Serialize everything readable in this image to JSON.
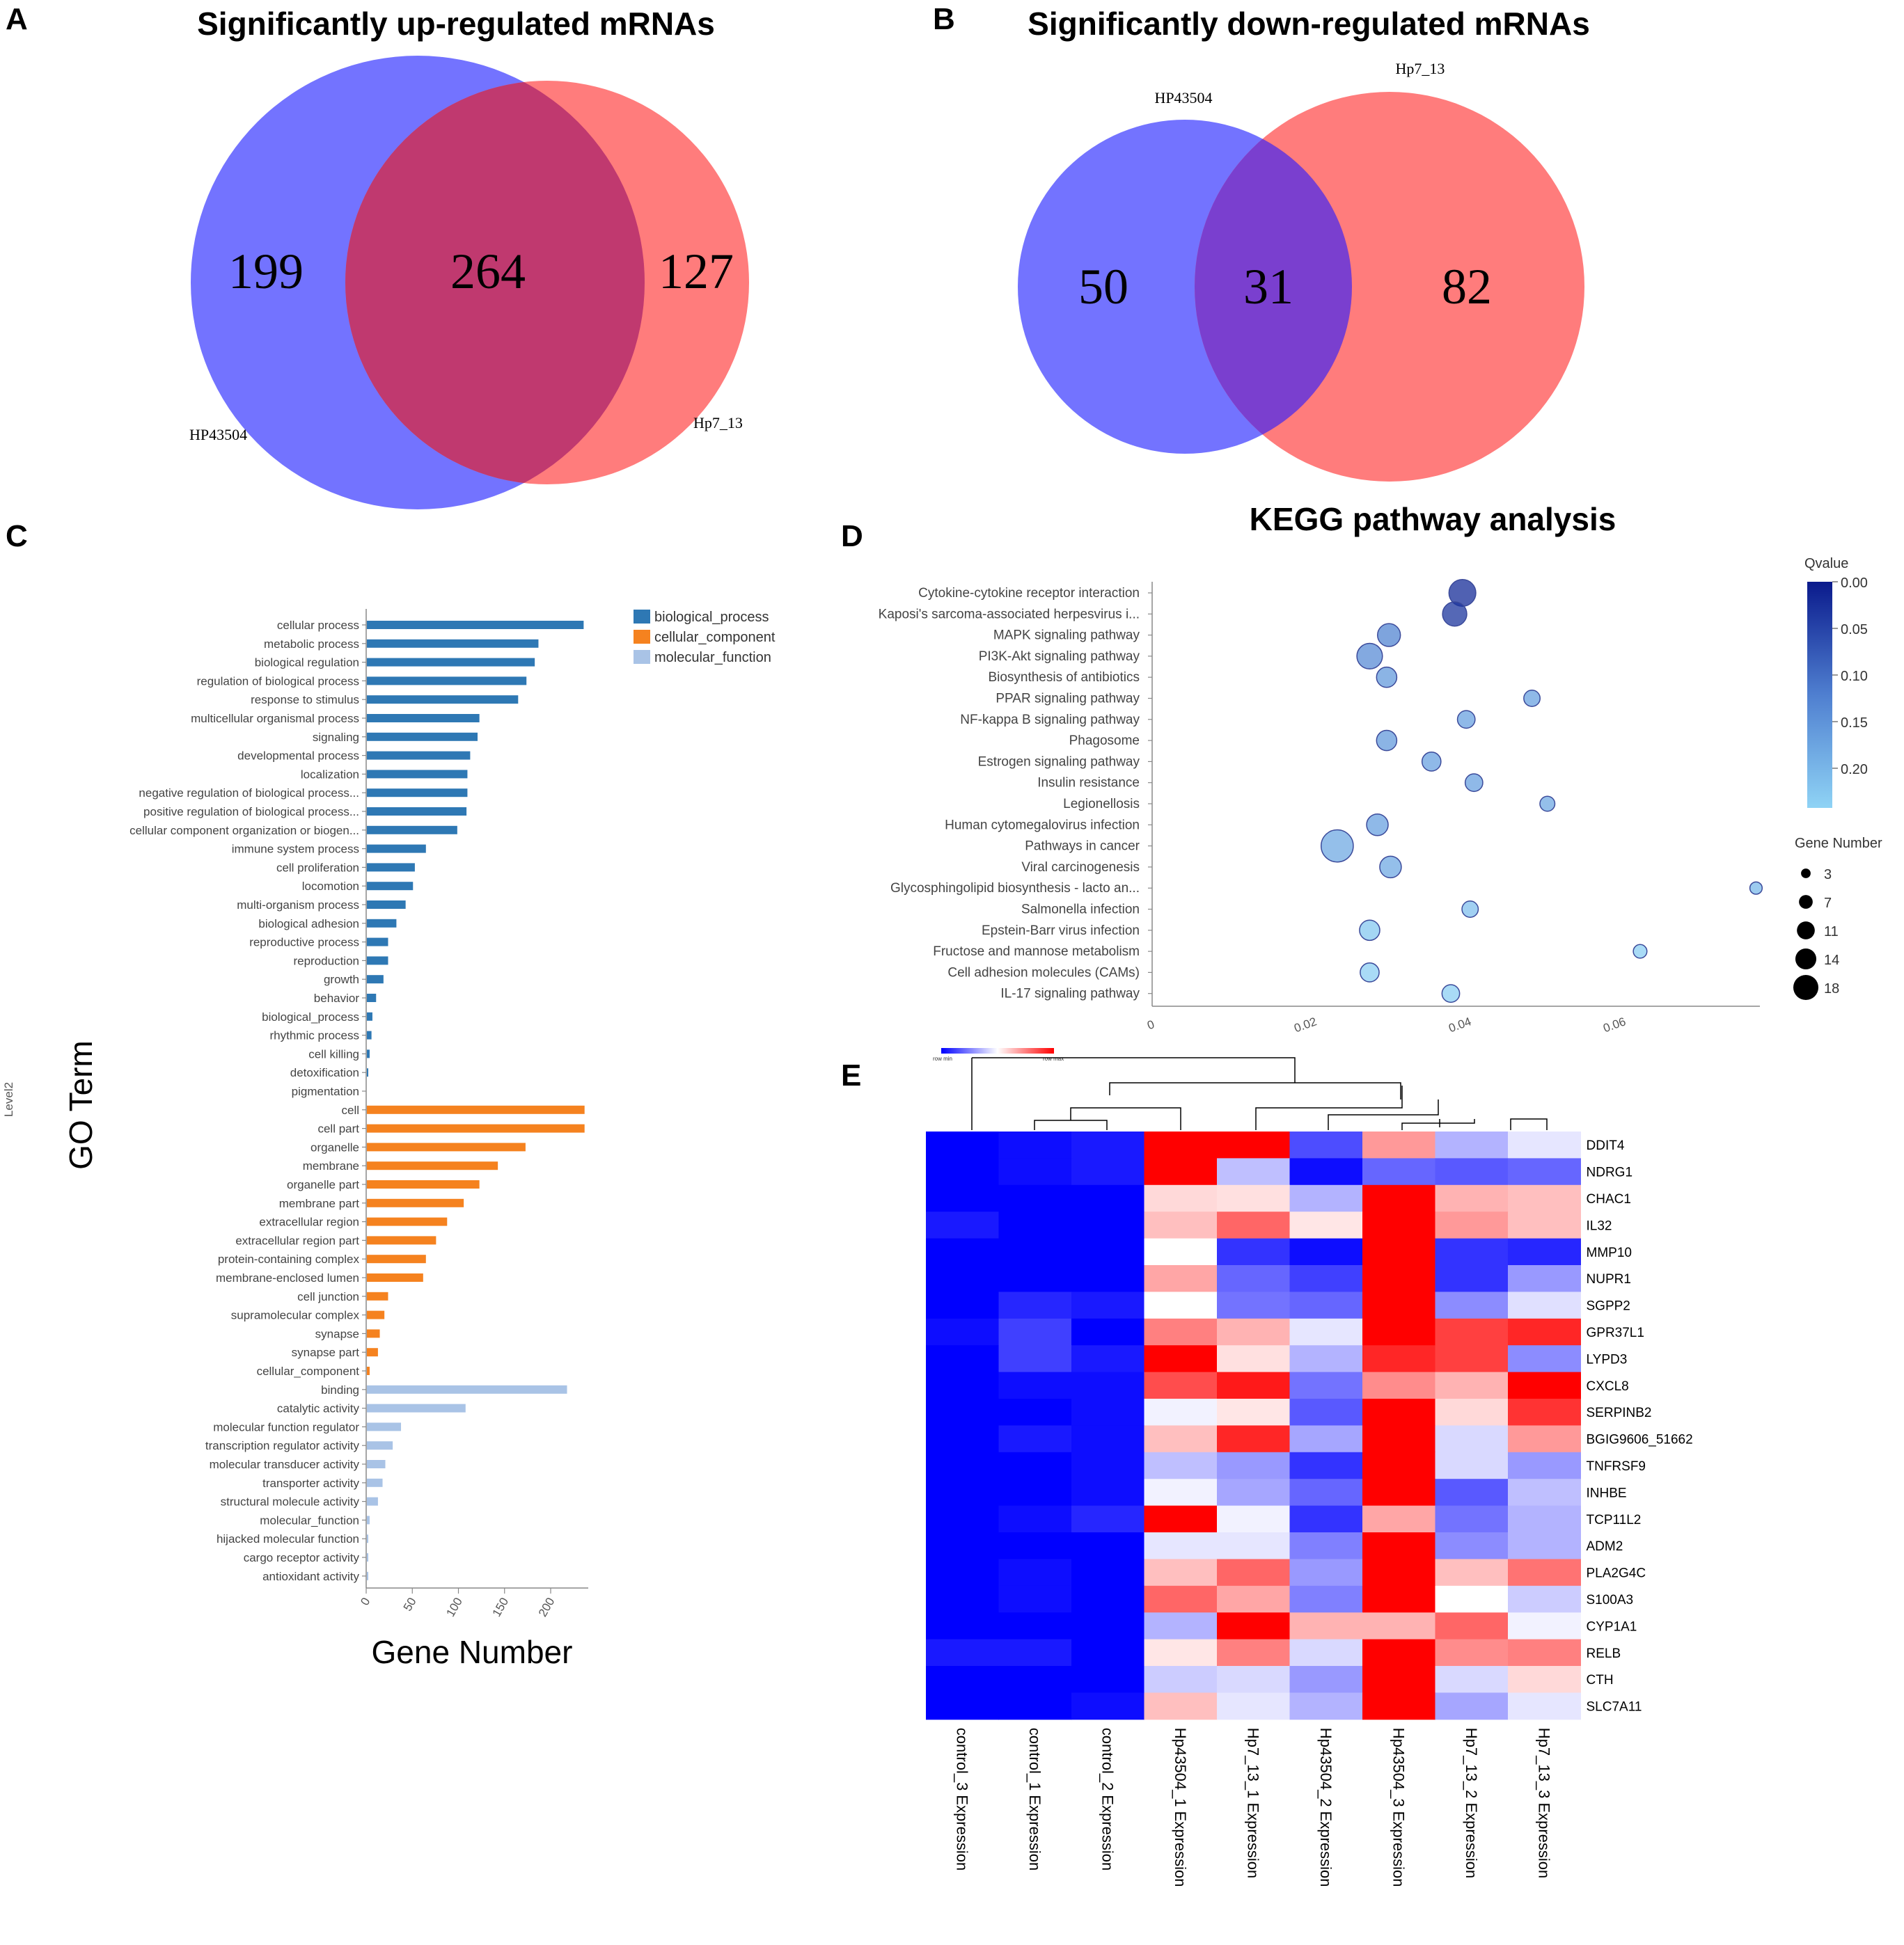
{
  "chart_data": [
    {
      "panel": "A",
      "type": "venn",
      "title": "Significantly up-regulated mRNAs",
      "sets": [
        "HP43504",
        "Hp7_13"
      ],
      "values": {
        "left_only": 199,
        "overlap": 264,
        "right_only": 127
      },
      "colors": {
        "left": "#6b6bff",
        "right": "#ff6e6e",
        "overlap": "#c0396f"
      }
    },
    {
      "panel": "B",
      "type": "venn",
      "title": "Significantly down-regulated mRNAs",
      "sets": [
        "HP43504",
        "Hp7_13"
      ],
      "values": {
        "left_only": 50,
        "overlap": 31,
        "right_only": 82
      },
      "colors": {
        "left": "#6b6bff",
        "right": "#ff6e6e",
        "overlap": "#7a3fcf"
      }
    },
    {
      "panel": "C",
      "type": "bar",
      "orientation": "horizontal",
      "ylabel": "GO Term",
      "xlabel": "Gene Number",
      "side_label": "Level2",
      "xlim": [
        0,
        235
      ],
      "xticks": [
        0,
        50,
        100,
        150,
        200
      ],
      "legend": [
        {
          "name": "biological_process",
          "color": "#2e78b4"
        },
        {
          "name": "cellular_component",
          "color": "#f5821f"
        },
        {
          "name": "molecular_function",
          "color": "#a9c3e6"
        }
      ],
      "categories": [
        {
          "term": "cellular process",
          "value": 235,
          "group": 0
        },
        {
          "term": "metabolic process",
          "value": 186,
          "group": 0
        },
        {
          "term": "biological regulation",
          "value": 182,
          "group": 0
        },
        {
          "term": "regulation of biological process",
          "value": 173,
          "group": 0
        },
        {
          "term": "response to stimulus",
          "value": 164,
          "group": 0
        },
        {
          "term": "multicellular organismal process",
          "value": 122,
          "group": 0
        },
        {
          "term": "signaling",
          "value": 120,
          "group": 0
        },
        {
          "term": "developmental process",
          "value": 112,
          "group": 0
        },
        {
          "term": "localization",
          "value": 109,
          "group": 0
        },
        {
          "term": "negative regulation of biological process...",
          "value": 109,
          "group": 0
        },
        {
          "term": "positive regulation of biological process...",
          "value": 108,
          "group": 0
        },
        {
          "term": "cellular component organization or biogen...",
          "value": 98,
          "group": 0
        },
        {
          "term": "immune system process",
          "value": 64,
          "group": 0
        },
        {
          "term": "cell proliferation",
          "value": 52,
          "group": 0
        },
        {
          "term": "locomotion",
          "value": 50,
          "group": 0
        },
        {
          "term": "multi-organism process",
          "value": 42,
          "group": 0
        },
        {
          "term": "biological adhesion",
          "value": 32,
          "group": 0
        },
        {
          "term": "reproductive process",
          "value": 23,
          "group": 0
        },
        {
          "term": "reproduction",
          "value": 23,
          "group": 0
        },
        {
          "term": "growth",
          "value": 18,
          "group": 0
        },
        {
          "term": "behavior",
          "value": 10,
          "group": 0
        },
        {
          "term": "biological_process",
          "value": 6,
          "group": 0
        },
        {
          "term": "rhythmic process",
          "value": 5,
          "group": 0
        },
        {
          "term": "cell killing",
          "value": 3,
          "group": 0
        },
        {
          "term": "detoxification",
          "value": 1,
          "group": 0
        },
        {
          "term": "pigmentation",
          "value": 0,
          "group": 0
        },
        {
          "term": "cell",
          "value": 236,
          "group": 1
        },
        {
          "term": "cell part",
          "value": 236,
          "group": 1
        },
        {
          "term": "organelle",
          "value": 172,
          "group": 1
        },
        {
          "term": "membrane",
          "value": 142,
          "group": 1
        },
        {
          "term": "organelle part",
          "value": 122,
          "group": 1
        },
        {
          "term": "membrane part",
          "value": 105,
          "group": 1
        },
        {
          "term": "extracellular region",
          "value": 87,
          "group": 1
        },
        {
          "term": "extracellular region part",
          "value": 75,
          "group": 1
        },
        {
          "term": "protein-containing complex",
          "value": 64,
          "group": 1
        },
        {
          "term": "membrane-enclosed lumen",
          "value": 61,
          "group": 1
        },
        {
          "term": "cell junction",
          "value": 23,
          "group": 1
        },
        {
          "term": "supramolecular complex",
          "value": 19,
          "group": 1
        },
        {
          "term": "synapse",
          "value": 14,
          "group": 1
        },
        {
          "term": "synapse part",
          "value": 12,
          "group": 1
        },
        {
          "term": "cellular_component",
          "value": 3,
          "group": 1
        },
        {
          "term": "binding",
          "value": 217,
          "group": 2
        },
        {
          "term": "catalytic activity",
          "value": 107,
          "group": 2
        },
        {
          "term": "molecular function regulator",
          "value": 37,
          "group": 2
        },
        {
          "term": "transcription regulator activity",
          "value": 28,
          "group": 2
        },
        {
          "term": "molecular transducer activity",
          "value": 20,
          "group": 2
        },
        {
          "term": "transporter activity",
          "value": 17,
          "group": 2
        },
        {
          "term": "structural molecule activity",
          "value": 12,
          "group": 2
        },
        {
          "term": "molecular_function",
          "value": 3,
          "group": 2
        },
        {
          "term": "hijacked molecular function",
          "value": 1,
          "group": 2
        },
        {
          "term": "cargo receptor activity",
          "value": 1,
          "group": 2
        },
        {
          "term": "antioxidant activity",
          "value": 1,
          "group": 2
        }
      ]
    },
    {
      "panel": "D",
      "type": "scatter",
      "title": "KEGG pathway analysis",
      "xlim": [
        0,
        0.08
      ],
      "xticks": [
        0,
        0.02,
        0.04,
        0.06
      ],
      "xtick_labels": [
        "0",
        "0.02",
        "0.04",
        "0.06"
      ],
      "color_legend_title": "Qvalue",
      "color_ticks": [
        "0.00",
        "0.05",
        "0.10",
        "0.15",
        "0.20"
      ],
      "size_legend_title": "Gene Number",
      "size_legend": [
        3,
        7,
        11,
        14,
        18
      ],
      "points": [
        {
          "pathway": "Cytokine-cytokine receptor interaction",
          "x": 0.0415,
          "q": 0.02,
          "genes": 14
        },
        {
          "pathway": "Kaposi's sarcoma-associated herpesvirus i...",
          "x": 0.0405,
          "q": 0.03,
          "genes": 12
        },
        {
          "pathway": "MAPK signaling pathway",
          "x": 0.032,
          "q": 0.12,
          "genes": 11
        },
        {
          "pathway": "PI3K-Akt signaling pathway",
          "x": 0.0295,
          "q": 0.13,
          "genes": 13
        },
        {
          "pathway": "Biosynthesis of antibiotics",
          "x": 0.0317,
          "q": 0.15,
          "genes": 9
        },
        {
          "pathway": "PPAR signaling pathway",
          "x": 0.0505,
          "q": 0.16,
          "genes": 6
        },
        {
          "pathway": "NF-kappa B signaling pathway",
          "x": 0.042,
          "q": 0.16,
          "genes": 7
        },
        {
          "pathway": "Phagosome",
          "x": 0.0317,
          "q": 0.15,
          "genes": 9
        },
        {
          "pathway": "Estrogen signaling pathway",
          "x": 0.0375,
          "q": 0.16,
          "genes": 8
        },
        {
          "pathway": "Insulin resistance",
          "x": 0.043,
          "q": 0.16,
          "genes": 7
        },
        {
          "pathway": "Legionellosis",
          "x": 0.0525,
          "q": 0.17,
          "genes": 5
        },
        {
          "pathway": "Human cytomegalovirus infection",
          "x": 0.0305,
          "q": 0.16,
          "genes": 10
        },
        {
          "pathway": "Pathways in cancer",
          "x": 0.0253,
          "q": 0.17,
          "genes": 18
        },
        {
          "pathway": "Viral carcinogenesis",
          "x": 0.0322,
          "q": 0.17,
          "genes": 10
        },
        {
          "pathway": "Glycosphingolipid biosynthesis - lacto an...",
          "x": 0.0795,
          "q": 0.19,
          "genes": 3
        },
        {
          "pathway": "Salmonella infection",
          "x": 0.0425,
          "q": 0.2,
          "genes": 6
        },
        {
          "pathway": "Epstein-Barr virus infection",
          "x": 0.0295,
          "q": 0.21,
          "genes": 9
        },
        {
          "pathway": "Fructose and mannose metabolism",
          "x": 0.0645,
          "q": 0.22,
          "genes": 4
        },
        {
          "pathway": "Cell adhesion molecules (CAMs)",
          "x": 0.0295,
          "q": 0.22,
          "genes": 8
        },
        {
          "pathway": "IL-17 signaling pathway",
          "x": 0.04,
          "q": 0.22,
          "genes": 7
        }
      ]
    },
    {
      "panel": "E",
      "type": "heatmap",
      "color_scale_labels": [
        "row min",
        "row max"
      ],
      "columns": [
        "control_3 Expression",
        "control_1 Expression",
        "control_2 Expression",
        "Hp43504_1 Expression",
        "Hp7_13_1 Expression",
        "Hp43504_2 Expression",
        "Hp43504_3 Expression",
        "Hp7_13_2 Expression",
        "Hp7_13_3 Expression"
      ],
      "rows": [
        "DDIT4",
        "NDRG1",
        "CHAC1",
        "IL32",
        "MMP10",
        "NUPR1",
        "SGPP2",
        "GPR37L1",
        "LYPD3",
        "CXCL8",
        "SERPINB2",
        "BGIG9606_51662",
        "TNFRSF9",
        "INHBE",
        "TCP11L2",
        "ADM2",
        "PLA2G4C",
        "S100A3",
        "CYP1A1",
        "RELB",
        "CTH",
        "SLC7A11"
      ],
      "values": [
        [
          -1.0,
          -0.95,
          -0.9,
          1.0,
          1.0,
          -0.7,
          0.4,
          -0.3,
          -0.1
        ],
        [
          -1.0,
          -0.95,
          -0.9,
          1.0,
          -0.25,
          -0.95,
          -0.6,
          -0.65,
          -0.6
        ],
        [
          -1.0,
          -1.0,
          -1.0,
          0.15,
          0.12,
          -0.3,
          1.0,
          0.3,
          0.25
        ],
        [
          -0.9,
          -1.0,
          -1.0,
          0.25,
          0.6,
          0.1,
          1.0,
          0.4,
          0.25
        ],
        [
          -1.0,
          -1.0,
          -1.0,
          0.0,
          -0.8,
          -0.95,
          1.0,
          -0.8,
          -0.85
        ],
        [
          -1.0,
          -1.0,
          -1.0,
          0.35,
          -0.6,
          -0.75,
          1.0,
          -0.8,
          -0.4
        ],
        [
          -1.0,
          -0.85,
          -0.9,
          0.0,
          -0.55,
          -0.6,
          1.0,
          -0.45,
          -0.12
        ],
        [
          -0.95,
          -0.75,
          -1.0,
          0.5,
          0.3,
          -0.1,
          1.0,
          0.75,
          0.85
        ],
        [
          -1.0,
          -0.75,
          -0.9,
          1.0,
          0.12,
          -0.3,
          0.85,
          0.75,
          -0.45
        ],
        [
          -1.0,
          -0.95,
          -0.95,
          0.7,
          0.9,
          -0.55,
          0.45,
          0.3,
          1.0
        ],
        [
          -1.0,
          -1.0,
          -0.95,
          -0.05,
          0.1,
          -0.65,
          1.0,
          0.15,
          0.8
        ],
        [
          -1.0,
          -0.9,
          -0.95,
          0.25,
          0.85,
          -0.35,
          1.0,
          -0.15,
          0.4
        ],
        [
          -1.0,
          -1.0,
          -0.95,
          -0.25,
          -0.4,
          -0.8,
          1.0,
          -0.15,
          -0.4
        ],
        [
          -1.0,
          -1.0,
          -0.95,
          -0.05,
          -0.35,
          -0.6,
          1.0,
          -0.65,
          -0.25
        ],
        [
          -1.0,
          -0.95,
          -0.85,
          1.0,
          -0.05,
          -0.8,
          0.35,
          -0.55,
          -0.3
        ],
        [
          -1.0,
          -1.0,
          -1.0,
          -0.1,
          -0.1,
          -0.5,
          1.0,
          -0.45,
          -0.3
        ],
        [
          -1.0,
          -0.95,
          -1.0,
          0.25,
          0.6,
          -0.4,
          1.0,
          0.25,
          0.55
        ],
        [
          -1.0,
          -0.95,
          -1.0,
          0.6,
          0.35,
          -0.5,
          1.0,
          0.0,
          -0.2
        ],
        [
          -1.0,
          -1.0,
          -1.0,
          -0.3,
          1.0,
          0.3,
          0.3,
          0.6,
          -0.05
        ],
        [
          -0.9,
          -0.9,
          -1.0,
          0.1,
          0.5,
          -0.15,
          1.0,
          0.45,
          0.5
        ],
        [
          -1.0,
          -1.0,
          -1.0,
          -0.2,
          -0.15,
          -0.4,
          1.0,
          -0.15,
          0.15
        ],
        [
          -1.0,
          -1.0,
          -0.95,
          0.25,
          -0.1,
          -0.3,
          1.0,
          -0.35,
          -0.1
        ]
      ]
    }
  ],
  "panel_labels": {
    "a": "A",
    "b": "B",
    "c": "C",
    "d": "D",
    "e": "E"
  }
}
